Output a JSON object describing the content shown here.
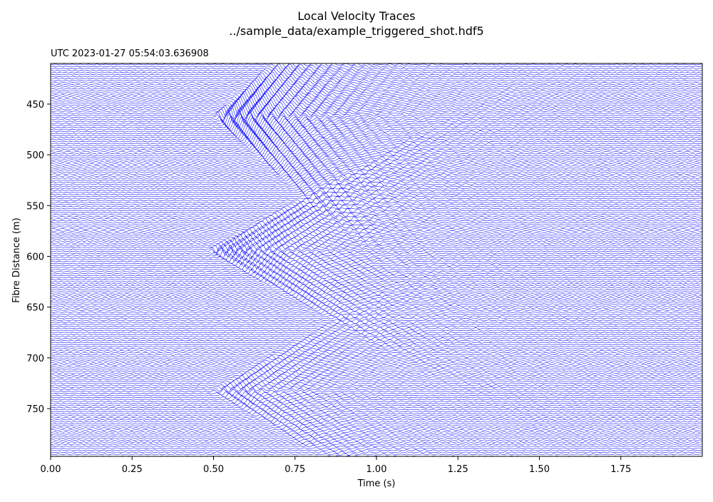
{
  "chart_data": {
    "type": "line",
    "title": "Local Velocity Traces",
    "subtitle": "../sample_data/example_triggered_shot.hdf5",
    "timestamp_label": "UTC 2023-01-27 05:54:03.636908",
    "xlabel": "Time (s)",
    "ylabel": "Fibre Distance (m)",
    "xlim": [
      0.0,
      2.0
    ],
    "ylim": [
      410,
      797
    ],
    "y_inverted": true,
    "grid": false,
    "trace_color": "#0000ff",
    "trace_spacing_m": 2,
    "x_tick_labels": [
      {
        "value": 0.0,
        "label": "0.00"
      },
      {
        "value": 0.25,
        "label": "0.25"
      },
      {
        "value": 0.5,
        "label": "0.50"
      },
      {
        "value": 0.75,
        "label": "0.75"
      },
      {
        "value": 1.0,
        "label": "1.00"
      },
      {
        "value": 1.25,
        "label": "1.25"
      },
      {
        "value": 1.5,
        "label": "1.50"
      },
      {
        "value": 1.75,
        "label": "1.75"
      }
    ],
    "y_tick_labels": [
      {
        "value": 450,
        "label": "450"
      },
      {
        "value": 500,
        "label": "500"
      },
      {
        "value": 550,
        "label": "550"
      },
      {
        "value": 600,
        "label": "600"
      },
      {
        "value": 650,
        "label": "650"
      },
      {
        "value": 700,
        "label": "700"
      },
      {
        "value": 750,
        "label": "750"
      }
    ],
    "events": [
      {
        "source_distance_m": 462,
        "onset_time_s": 0.5,
        "wave_speed_m_per_s": 300,
        "peak_amplitude": 8.0,
        "frequency_hz": 30
      },
      {
        "source_distance_m": 594,
        "onset_time_s": 0.48,
        "wave_speed_m_per_s": 180,
        "peak_amplitude": 5.5,
        "frequency_hz": 34
      },
      {
        "source_distance_m": 732,
        "onset_time_s": 0.49,
        "wave_speed_m_per_s": 190,
        "peak_amplitude": 3.2,
        "frequency_hz": 34
      }
    ]
  }
}
